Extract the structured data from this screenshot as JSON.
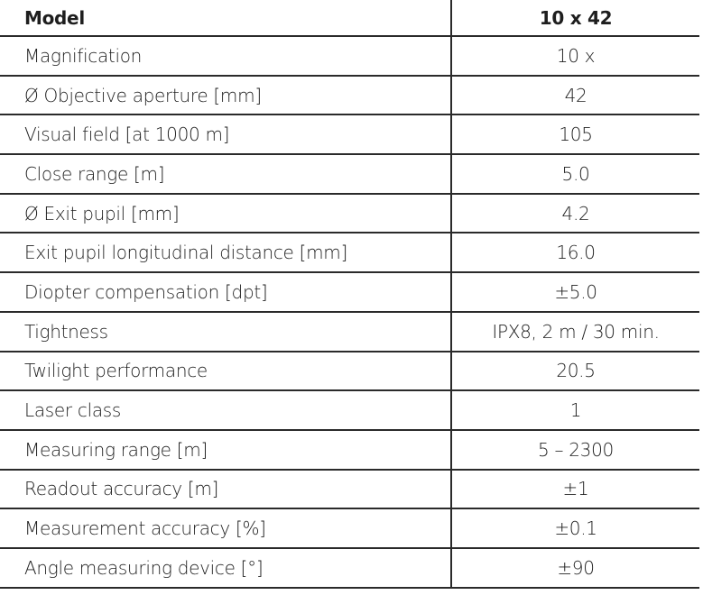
{
  "table": {
    "header": {
      "label": "Model",
      "value": "10 x 42"
    },
    "rows": [
      {
        "label": "Magnification",
        "value": "10 x"
      },
      {
        "label": "Ø Objective aperture [mm]",
        "value": "42"
      },
      {
        "label": "Visual field [at 1000 m]",
        "value": "105"
      },
      {
        "label": "Close range [m]",
        "value": "5.0"
      },
      {
        "label": "Ø Exit pupil [mm]",
        "value": "4.2"
      },
      {
        "label": "Exit pupil longitudinal distance [mm]",
        "value": "16.0"
      },
      {
        "label": "Diopter compensation [dpt]",
        "value": "±5.0"
      },
      {
        "label": "Tightness",
        "value": "IPX8, 2 m / 30 min."
      },
      {
        "label": "Twilight performance",
        "value": "20.5"
      },
      {
        "label": "Laser class",
        "value": "1"
      },
      {
        "label": "Measuring range [m]",
        "value": "5 – 2300"
      },
      {
        "label": "Readout accuracy [m]",
        "value": "±1"
      },
      {
        "label": "Measurement accuracy [%]",
        "value": "±0.1"
      },
      {
        "label": "Angle measuring device [°]",
        "value": "±90"
      }
    ]
  }
}
